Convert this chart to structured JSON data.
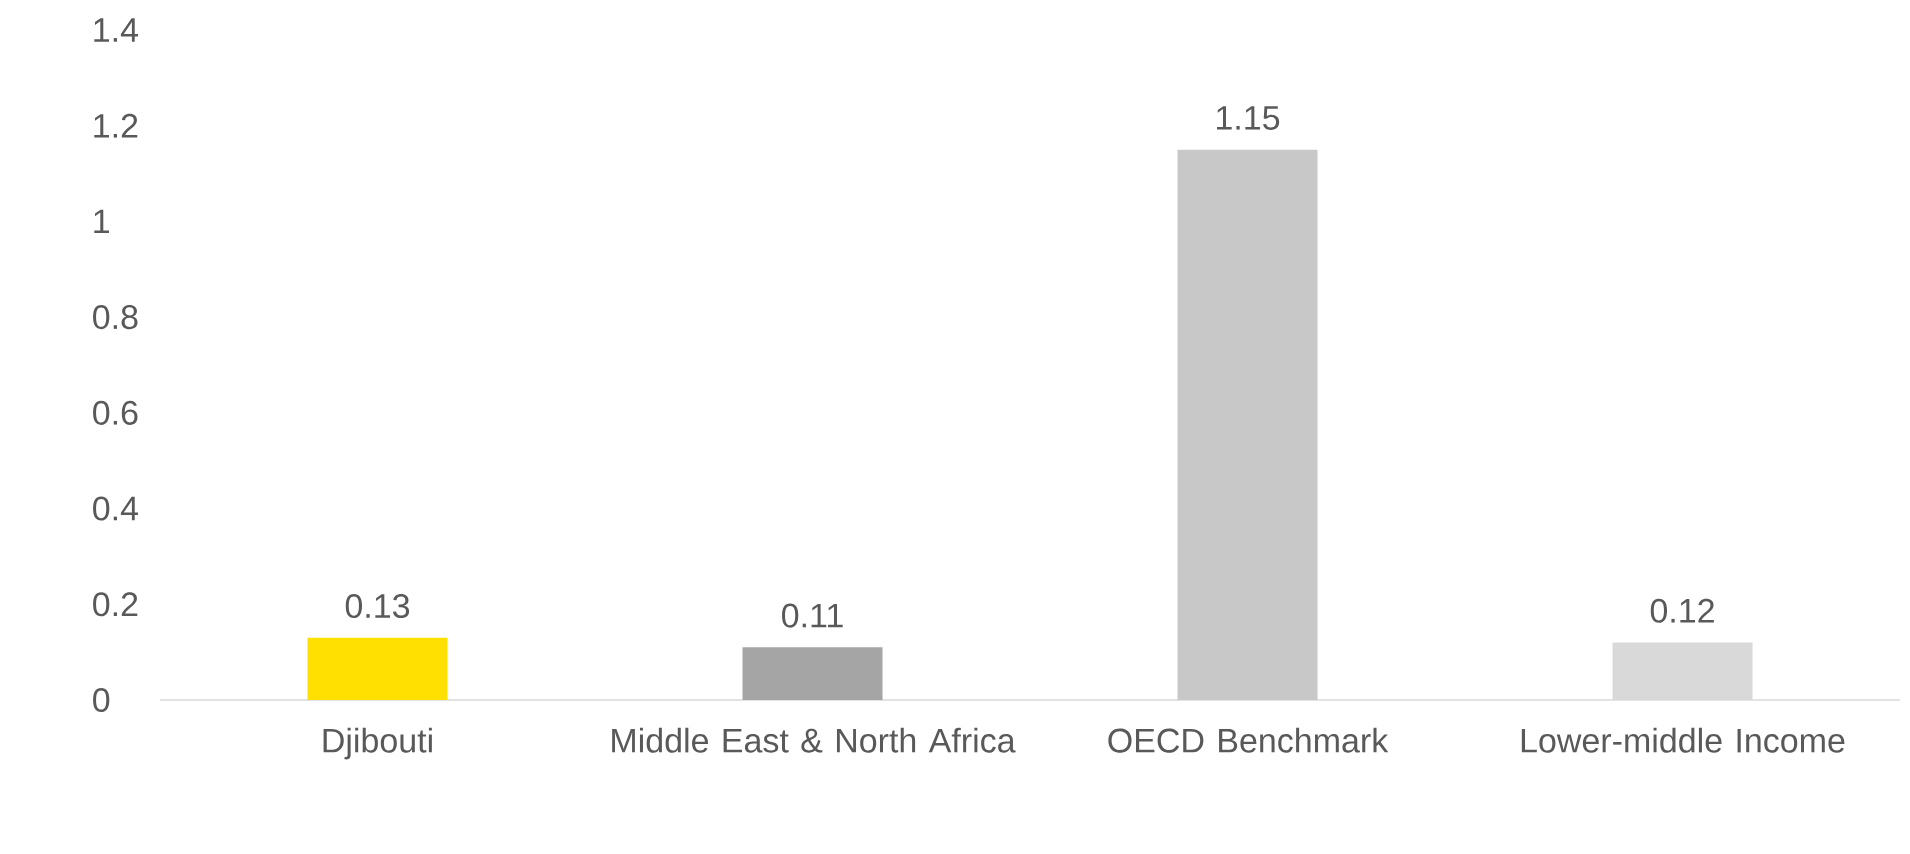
{
  "chart_data": {
    "type": "bar",
    "categories": [
      "Djibouti",
      "Middle East & North Africa",
      "OECD Benchmark",
      "Lower-middle Income"
    ],
    "values": [
      0.13,
      0.11,
      1.15,
      0.12
    ],
    "colors": [
      "#ffe000",
      "#a5a5a5",
      "#c8c8c8",
      "#d9d9d9"
    ],
    "ylim": [
      0,
      1.4
    ],
    "yticks": [
      0,
      0.2,
      0.4,
      0.6,
      0.8,
      1,
      1.2,
      1.4
    ],
    "grid": false,
    "data_labels": true
  }
}
